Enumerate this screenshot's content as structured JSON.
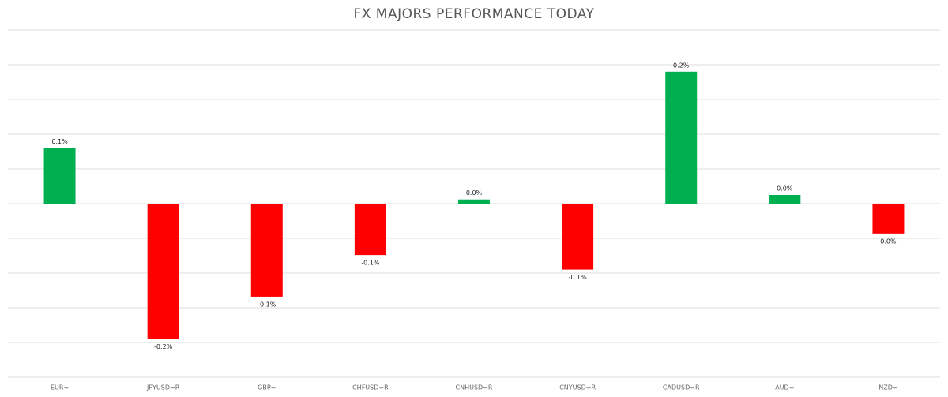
{
  "chart_data": {
    "type": "bar",
    "title": "FX MAJORS PERFORMANCE TODAY",
    "categories": [
      "EUR=",
      "JPYUSD=R",
      "GBP=",
      "CHFUSD=R",
      "CNHUSD=R",
      "CNYUSD=R",
      "CADUSD=R",
      "AUD=",
      "NZD="
    ],
    "values": [
      0.08,
      -0.195,
      -0.134,
      -0.074,
      0.006,
      -0.095,
      0.19,
      0.0125,
      -0.043
    ],
    "value_labels": [
      "0.1%",
      "-0.2%",
      "-0.1%",
      "-0.1%",
      "0.0%",
      "-0.1%",
      "0.2%",
      "0.0%",
      "0.0%"
    ],
    "colors": {
      "positive": "#00b050",
      "negative": "#ff0000"
    },
    "ylim": [
      -0.25,
      0.25
    ],
    "yticks": [
      -0.25,
      -0.2,
      -0.15,
      -0.1,
      -0.05,
      0,
      0.05,
      0.1,
      0.15,
      0.2,
      0.25
    ],
    "grid": true
  }
}
